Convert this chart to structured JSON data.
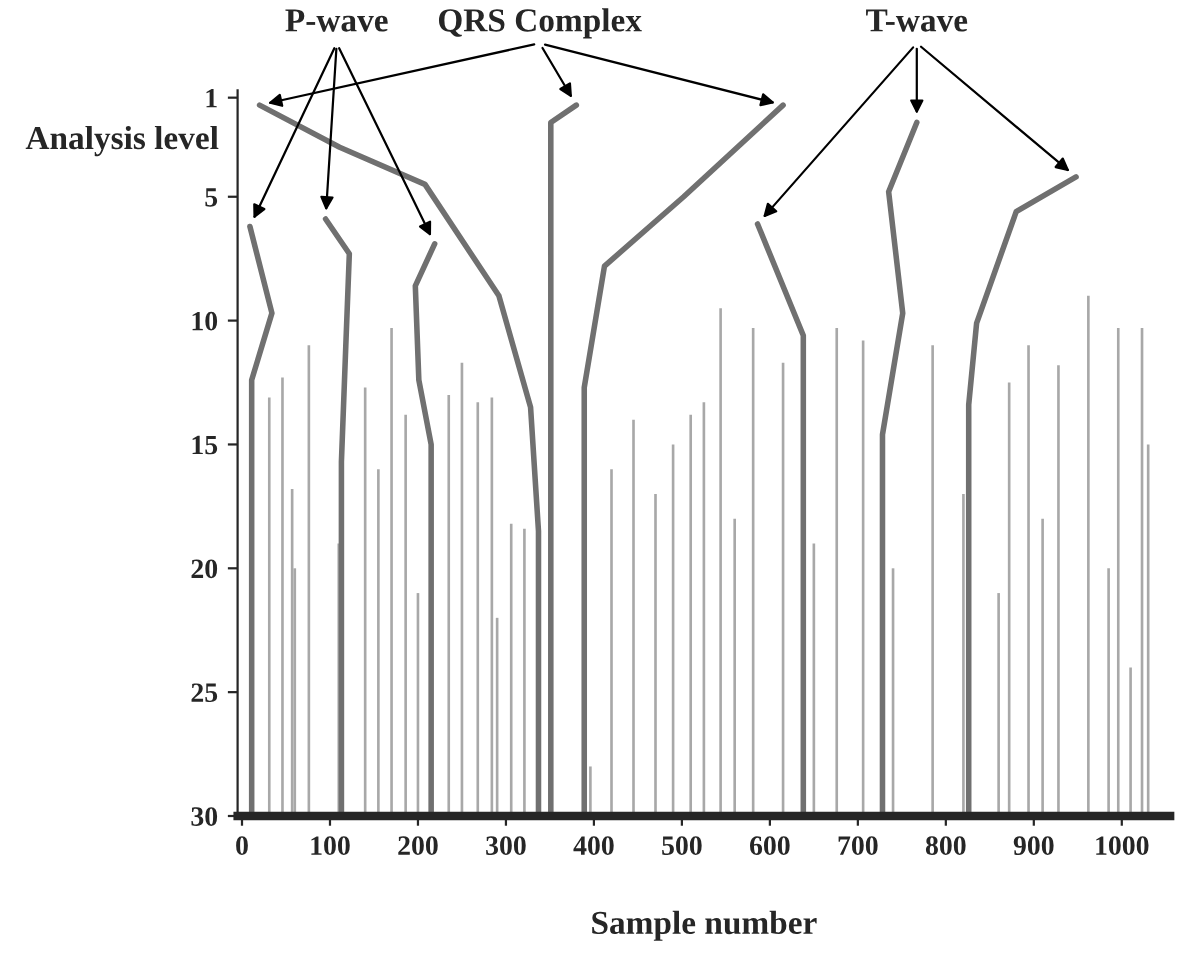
{
  "chart_data": {
    "type": "line",
    "xlabel": "Sample number",
    "ylabel": "Analysis level",
    "xlim": [
      -5,
      1055
    ],
    "xticks": [
      0,
      100,
      200,
      300,
      400,
      500,
      600,
      700,
      800,
      900,
      1000
    ],
    "ylim": [
      30,
      0.7
    ],
    "yticks": [
      1,
      5,
      10,
      15,
      20,
      25,
      30
    ],
    "grid": false,
    "legend": false,
    "series": [
      {
        "type": "bar",
        "color": "#a8a8a8",
        "x": [
          31,
          46,
          57,
          60,
          76,
          110,
          140,
          155,
          170,
          186,
          200,
          235,
          250,
          268,
          284,
          290,
          306,
          321,
          396,
          420,
          445,
          470,
          490,
          510,
          525,
          544,
          560,
          581,
          615,
          650,
          676,
          706,
          740,
          785,
          820,
          860,
          872,
          894,
          910,
          928,
          962,
          985,
          996,
          1010,
          1023,
          1030
        ],
        "base": [
          30,
          30,
          30,
          30,
          30,
          30,
          30,
          30,
          30,
          30,
          30,
          30,
          30,
          30,
          30,
          30,
          30,
          30,
          30,
          30,
          30,
          30,
          30,
          30,
          30,
          30,
          30,
          30,
          30,
          30,
          30,
          30,
          30,
          30,
          30,
          30,
          30,
          30,
          30,
          30,
          30,
          30,
          30,
          30,
          30,
          30
        ],
        "values": [
          -16.9,
          -17.7,
          -13.2,
          -10,
          -19,
          -11,
          -17.3,
          -14,
          -19.7,
          -16.2,
          -9,
          -17,
          -18.3,
          -16.7,
          -16.9,
          -8,
          -11.8,
          -11.6,
          -2,
          -14,
          -16,
          -13,
          -15,
          -16.2,
          -16.7,
          -20.5,
          -12,
          -19.7,
          -18.3,
          -11,
          -19.7,
          -19.2,
          -10,
          -19,
          -13,
          -9,
          -17.5,
          -19,
          -12,
          -18.2,
          -21,
          -10,
          -19.7,
          -6,
          -19.7,
          -15
        ]
      },
      {
        "name": "QRS Complex",
        "color": "#707070",
        "x": [
          20,
          111,
          208,
          292,
          328,
          337,
          337,
          null,
          380,
          351,
          351,
          null,
          615,
          502,
          412,
          389,
          389
        ],
        "values": [
          1.3,
          3,
          4.5,
          9,
          13.5,
          18.5,
          30,
          null,
          1.3,
          2,
          30,
          null,
          1.3,
          5,
          7.8,
          12.7,
          30
        ]
      },
      {
        "name": "P-wave",
        "color": "#707070",
        "x": [
          9,
          34,
          11,
          11,
          null,
          95,
          122,
          118,
          113,
          113,
          null,
          219,
          197,
          201,
          215,
          215
        ],
        "values": [
          6.2,
          9.7,
          12.4,
          30,
          null,
          5.9,
          7.3,
          11,
          15.7,
          30,
          null,
          6.9,
          8.6,
          12.4,
          15,
          30
        ]
      },
      {
        "name": "T-wave",
        "color": "#707070",
        "x": [
          586,
          638,
          638,
          null,
          767,
          735,
          751,
          728,
          728,
          null,
          948,
          880,
          835,
          826,
          826
        ],
        "values": [
          6.1,
          10.6,
          30,
          null,
          2,
          4.8,
          9.7,
          14.6,
          30,
          null,
          4.2,
          5.6,
          10.1,
          13.4,
          30
        ]
      }
    ]
  }
}
